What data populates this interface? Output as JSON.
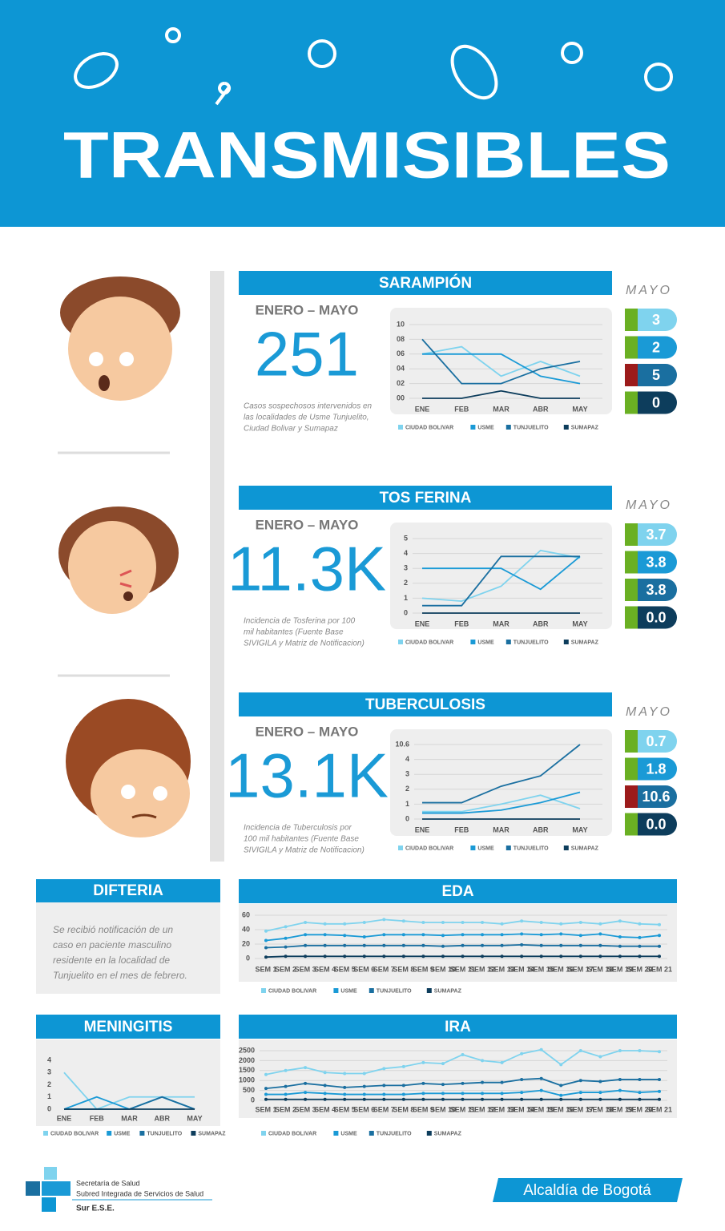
{
  "header": {
    "title": "TRANSMISIBLES"
  },
  "sections": [
    {
      "period": "ENERO – MAYO",
      "total": "251",
      "description": [
        "Casos sospechosos intervenidos en",
        "las localidades de Usme Tunjuelito,",
        "Ciudad Bolivar y Sumapaz"
      ],
      "mayo": {
        "label": "MAYO",
        "values": [
          "3",
          "2",
          "5",
          "0"
        ],
        "flags": [
          "#6ab023",
          "#6ab023",
          "#9c1b1b",
          "#6ab023"
        ]
      }
    },
    {
      "period": "ENERO – MAYO",
      "total": "11.3K",
      "description": [
        "Incidencia de Tosferina por 100",
        "mil habitantes (Fuente Base",
        "SIVIGILA y Matriz de Notificacion)"
      ],
      "mayo": {
        "label": "MAYO",
        "values": [
          "3.7",
          "3.8",
          "3.8",
          "0.0"
        ],
        "flags": [
          "#6ab023",
          "#6ab023",
          "#6ab023",
          "#6ab023"
        ]
      }
    },
    {
      "period": "ENERO – MAYO",
      "total": "13.1K",
      "description": [
        "Incidencia de Tuberculosis por",
        "100 mil habitantes (Fuente Base",
        "SIVIGILA y Matriz de Notificacion)"
      ],
      "mayo": {
        "label": "MAYO",
        "values": [
          "0.7",
          "1.8",
          "10.6",
          "0.0"
        ],
        "flags": [
          "#6ab023",
          "#6ab023",
          "#9c1b1b",
          "#6ab023"
        ]
      }
    }
  ],
  "difteria": {
    "title": "DIFTERIA",
    "text": [
      "Se recibió notificación de un",
      "caso en paciente masculino",
      "residente en la localidad de",
      "Tunjuelito en el mes de febrero."
    ]
  },
  "chart_data": [
    {
      "type": "line",
      "title": "SARAMPIÓN",
      "categories": [
        "ENE",
        "FEB",
        "MAR",
        "ABR",
        "MAY"
      ],
      "ylim": [
        0,
        10
      ],
      "yticks": [
        {
          "value": 0,
          "label": "00"
        },
        {
          "value": 2,
          "label": "02"
        },
        {
          "value": 4,
          "label": "04"
        },
        {
          "value": 6,
          "label": "06"
        },
        {
          "value": 8,
          "label": "08"
        },
        10
      ],
      "grid": true,
      "markers": false,
      "series": [
        {
          "name": "CIUDAD BOLIVAR",
          "color": "#7fd3ee",
          "values": [
            6,
            7,
            3,
            5,
            3
          ]
        },
        {
          "name": "USME",
          "color": "#1a9ad6",
          "values": [
            6,
            6,
            6,
            3,
            2
          ]
        },
        {
          "name": "TUNJUELITO",
          "color": "#1a6fa0",
          "values": [
            8,
            2,
            2,
            4,
            5
          ]
        },
        {
          "name": "SUMAPAZ",
          "color": "#0d3d5c",
          "values": [
            0,
            0,
            1,
            0,
            0
          ]
        }
      ]
    },
    {
      "type": "line",
      "title": "TOS FERINA",
      "categories": [
        "ENE",
        "FEB",
        "MAR",
        "ABR",
        "MAY"
      ],
      "ylim": [
        0,
        5
      ],
      "yticks": [
        0,
        1,
        2,
        3,
        4,
        5
      ],
      "grid": true,
      "markers": false,
      "series": [
        {
          "name": "CIUDAD BOLIVAR",
          "color": "#7fd3ee",
          "values": [
            1,
            0.8,
            1.8,
            4.2,
            3.7
          ]
        },
        {
          "name": "USME",
          "color": "#1a9ad6",
          "values": [
            3,
            3,
            3,
            1.6,
            3.8
          ]
        },
        {
          "name": "TUNJUELITO",
          "color": "#1a6fa0",
          "values": [
            0.5,
            0.5,
            3.8,
            3.8,
            3.8
          ]
        },
        {
          "name": "SUMAPAZ",
          "color": "#0d3d5c",
          "values": [
            0,
            0,
            0,
            0,
            0
          ]
        }
      ]
    },
    {
      "type": "line",
      "title": "TUBERCULOSIS",
      "categories": [
        "ENE",
        "FEB",
        "MAR",
        "ABR",
        "MAY"
      ],
      "ylim": [
        0,
        10.6
      ],
      "yticks": [
        0,
        1,
        2,
        3,
        4,
        10.6
      ],
      "grid": true,
      "markers": false,
      "series": [
        {
          "name": "CIUDAD BOLIVAR",
          "color": "#7fd3ee",
          "values": [
            0.5,
            0.5,
            1,
            1.6,
            0.7
          ]
        },
        {
          "name": "USME",
          "color": "#1a9ad6",
          "values": [
            0.4,
            0.4,
            0.6,
            1.1,
            1.8
          ]
        },
        {
          "name": "TUNJUELITO",
          "color": "#1a6fa0",
          "values": [
            1.1,
            1.1,
            2.2,
            2.9,
            10.6
          ]
        },
        {
          "name": "SUMAPAZ",
          "color": "#0d3d5c",
          "values": [
            0,
            0,
            0,
            0,
            0
          ]
        }
      ]
    },
    {
      "type": "line",
      "title": "EDA",
      "categories": [
        "SEM 1",
        "SEM 2",
        "SEM 3",
        "SEM 4",
        "SEM 5",
        "SEM 6",
        "SEM 7",
        "SEM 8",
        "SEM 9",
        "SEM 10",
        "SEM 11",
        "SEM 12",
        "SEM 13",
        "SEM 14",
        "SEM 15",
        "SEM 16",
        "SEM 17",
        "SEM 18",
        "SEM 19",
        "SEM 20",
        "SEM 21"
      ],
      "ylim": [
        0,
        60
      ],
      "yticks": [
        0,
        20,
        40,
        60
      ],
      "grid": true,
      "markers": true,
      "series": [
        {
          "name": "CIUDAD BOLIVAR",
          "color": "#7fd3ee",
          "values": [
            38,
            44,
            50,
            48,
            48,
            50,
            54,
            52,
            50,
            50,
            50,
            50,
            48,
            52,
            50,
            48,
            50,
            48,
            52,
            48,
            47
          ]
        },
        {
          "name": "USME",
          "color": "#1a9ad6",
          "values": [
            25,
            28,
            33,
            33,
            32,
            30,
            33,
            33,
            33,
            32,
            33,
            33,
            33,
            34,
            33,
            34,
            32,
            34,
            30,
            29,
            32
          ]
        },
        {
          "name": "TUNJUELITO",
          "color": "#1a6fa0",
          "values": [
            15,
            16,
            18,
            18,
            18,
            18,
            18,
            18,
            18,
            17,
            18,
            18,
            18,
            19,
            18,
            18,
            18,
            18,
            17,
            17,
            17
          ]
        },
        {
          "name": "SUMAPAZ",
          "color": "#0d3d5c",
          "values": [
            2,
            3,
            3,
            3,
            3,
            3,
            3,
            3,
            3,
            3,
            3,
            3,
            3,
            3,
            3,
            3,
            3,
            3,
            3,
            3,
            3
          ]
        }
      ]
    },
    {
      "type": "line",
      "title": "MENINGITIS",
      "categories": [
        "ENE",
        "FEB",
        "MAR",
        "ABR",
        "MAY"
      ],
      "ylim": [
        0,
        4
      ],
      "yticks": [
        0,
        1,
        2,
        3,
        4
      ],
      "grid": false,
      "markers": false,
      "series": [
        {
          "name": "CIUDAD BOLIVAR",
          "color": "#7fd3ee",
          "values": [
            3,
            0,
            1,
            1,
            1
          ]
        },
        {
          "name": "USME",
          "color": "#1a9ad6",
          "values": [
            0,
            1,
            0,
            1,
            0
          ]
        },
        {
          "name": "TUNJUELITO",
          "color": "#1a6fa0",
          "values": [
            0,
            0,
            0,
            1,
            0
          ]
        },
        {
          "name": "SUMAPAZ",
          "color": "#0d3d5c",
          "values": [
            0,
            0,
            0,
            0,
            0
          ]
        }
      ]
    },
    {
      "type": "line",
      "title": "IRA",
      "categories": [
        "SEM 1",
        "SEM 2",
        "SEM 3",
        "SEM 4",
        "SEM 5",
        "SEM 6",
        "SEM 7",
        "SEM 8",
        "SEM 9",
        "SEM 10",
        "SEM 11",
        "SEM 12",
        "SEM 13",
        "SEM 14",
        "SEM 15",
        "SEM 16",
        "SEM 17",
        "SEM 18",
        "SEM 19",
        "SEM 20",
        "SEM 21"
      ],
      "ylim": [
        0,
        2500
      ],
      "yticks": [
        0,
        500,
        1000,
        1500,
        2000,
        2500
      ],
      "grid": true,
      "markers": true,
      "series": [
        {
          "name": "CIUDAD BOLIVAR",
          "color": "#7fd3ee",
          "values": [
            1300,
            1500,
            1650,
            1400,
            1350,
            1350,
            1600,
            1700,
            1900,
            1850,
            2300,
            2000,
            1900,
            2350,
            2550,
            1800,
            2500,
            2200,
            2500,
            2500,
            2450
          ]
        },
        {
          "name": "USME",
          "color": "#1a9ad6",
          "values": [
            300,
            300,
            400,
            350,
            300,
            300,
            300,
            300,
            350,
            350,
            350,
            350,
            350,
            400,
            500,
            250,
            400,
            400,
            500,
            400,
            450
          ]
        },
        {
          "name": "TUNJUELITO",
          "color": "#1a6fa0",
          "values": [
            600,
            700,
            850,
            750,
            650,
            700,
            750,
            750,
            850,
            800,
            850,
            900,
            900,
            1050,
            1100,
            750,
            1000,
            950,
            1050,
            1050,
            1050
          ]
        },
        {
          "name": "SUMAPAZ",
          "color": "#0d3d5c",
          "values": [
            50,
            50,
            50,
            50,
            50,
            50,
            50,
            50,
            50,
            50,
            50,
            50,
            50,
            50,
            50,
            50,
            50,
            50,
            50,
            50,
            50
          ]
        }
      ]
    }
  ],
  "footer": {
    "org": [
      "Secretaría de Salud",
      "Subred Integrada de Servicios de Salud",
      "Sur E.S.E."
    ],
    "city": "Alcaldía de Bogotá"
  }
}
